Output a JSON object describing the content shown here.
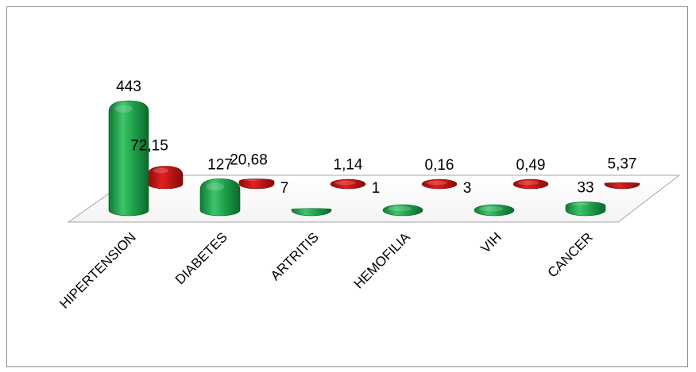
{
  "chart_data": {
    "type": "bar",
    "categories": [
      "HIPERTENSION",
      "DIABETES",
      "ARTRITIS",
      "HEMOFILIA",
      "VIH",
      "CANCER"
    ],
    "series": [
      {
        "values": [
          443,
          127,
          7,
          1,
          3,
          33
        ],
        "labels": [
          "443",
          "127",
          "7",
          "1",
          "3",
          "33"
        ],
        "color": "#1f9e4a"
      },
      {
        "values": [
          72.15,
          20.68,
          1.14,
          0.16,
          0.49,
          5.37
        ],
        "labels": [
          "72,15",
          "20,68",
          "1,14",
          "0,16",
          "0,49",
          "5,37"
        ],
        "color": "#c41414"
      }
    ],
    "title": "",
    "xlabel": "",
    "ylabel": "",
    "ylim": [
      0,
      443
    ],
    "grid": false,
    "legend": "none",
    "style": "3d-cylinder"
  }
}
